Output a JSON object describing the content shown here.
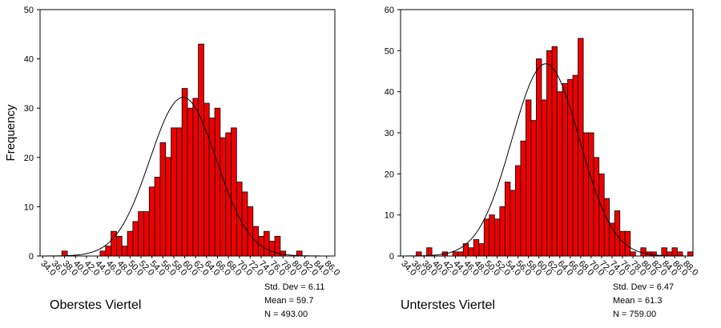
{
  "chart_data": [
    {
      "type": "bar",
      "caption": "Oberstes Viertel",
      "ylabel": "Frequency",
      "xlabel": "",
      "ylim": [
        0,
        50
      ],
      "yticks": [
        "0",
        "10",
        "20",
        "30",
        "40",
        "50"
      ],
      "bin_width": 1,
      "x_start": 34,
      "xtick_labels": [
        "34.0",
        "36.0",
        "38.0",
        "40.0",
        "42.0",
        "44.0",
        "46.0",
        "48.0",
        "50.0",
        "52.0",
        "54.0",
        "56.0",
        "58.0",
        "60.0",
        "62.0",
        "64.0",
        "66.0",
        "68.0",
        "70.0",
        "72.0",
        "74.0",
        "76.0",
        "78.0",
        "80.0",
        "82.0",
        "84.0",
        "86.0"
      ],
      "values": [
        0,
        0,
        0,
        0,
        1,
        0,
        0,
        0,
        0,
        0,
        0,
        1,
        2,
        5,
        4,
        2,
        5,
        7,
        9,
        9,
        14,
        16,
        23,
        20,
        26,
        26,
        34,
        30,
        32,
        43,
        31,
        28,
        30,
        24,
        25,
        26,
        15,
        13,
        10,
        6,
        4,
        5,
        3,
        4,
        1,
        0,
        0,
        1,
        0,
        0,
        0,
        0,
        0
      ],
      "normal_curve": {
        "mean": 59.7,
        "std": 6.11,
        "n": 493
      },
      "stats": [
        "Std. Dev = 6.11",
        "Mean = 59.7",
        "N = 493.00"
      ]
    },
    {
      "type": "bar",
      "caption": "Unterstes Viertel",
      "ylabel": "",
      "xlabel": "",
      "ylim": [
        0,
        60
      ],
      "yticks": [
        "0",
        "10",
        "20",
        "30",
        "40",
        "50",
        "60"
      ],
      "bin_width": 1,
      "x_start": 34,
      "xtick_labels": [
        "34.0",
        "36.0",
        "38.0",
        "40.0",
        "42.0",
        "44.0",
        "46.0",
        "48.0",
        "50.0",
        "52.0",
        "54.0",
        "56.0",
        "58.0",
        "60.0",
        "62.0",
        "64.0",
        "66.0",
        "68.0",
        "70.0",
        "72.0",
        "74.0",
        "76.0",
        "78.0",
        "80.0",
        "82.0",
        "84.0",
        "86.0",
        "88.0"
      ],
      "values": [
        0,
        0,
        0,
        1,
        0,
        2,
        0,
        0,
        1,
        0,
        1,
        1,
        3,
        2,
        4,
        3,
        9,
        10,
        9,
        12,
        18,
        16,
        22,
        28,
        38,
        33,
        48,
        38,
        50,
        51,
        40,
        42,
        43,
        44,
        53,
        30,
        30,
        24,
        20,
        14,
        8,
        11,
        6,
        6,
        1,
        0,
        2,
        1,
        1,
        0,
        2,
        1,
        2,
        1,
        0,
        1
      ],
      "normal_curve": {
        "mean": 61.3,
        "std": 6.47,
        "n": 759
      },
      "stats": [
        "Std. Dev = 6.47",
        "Mean = 61.3",
        "N = 759.00"
      ]
    }
  ],
  "colors": {
    "bar_fill": "#ee0000",
    "bar_stroke": "#000000",
    "curve": "#000000"
  }
}
